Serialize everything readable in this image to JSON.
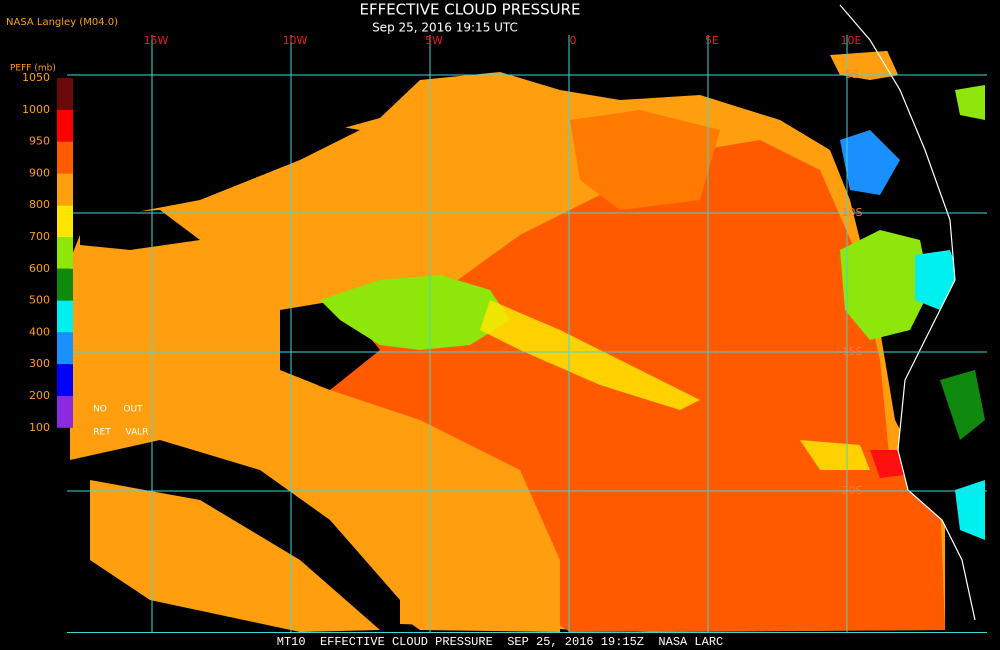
{
  "header": {
    "title": "EFFECTIVE CLOUD PRESSURE",
    "subtitle": "Sep 25, 2016 19:15 UTC",
    "credit": "NASA Langley (M04.0)"
  },
  "colorbar": {
    "label": "PEFF (mb)",
    "ticks": [
      1050,
      1000,
      950,
      900,
      800,
      700,
      600,
      500,
      400,
      300,
      200,
      100
    ],
    "colors": [
      "#6a0a0a",
      "#ff0000",
      "#ff5a00",
      "#ff9f10",
      "#ffe600",
      "#8ee60a",
      "#0f8a0f",
      "#00f0f0",
      "#1a90ff",
      "#0000ff",
      "#8a2be2"
    ]
  },
  "legend_notes": [
    "NO",
    "OUT",
    "RET",
    "VALR"
  ],
  "map": {
    "longitudes": [
      "15W",
      "10W",
      "5W",
      "0",
      "5E",
      "10E"
    ],
    "latitudes": [
      "5S",
      "10S",
      "15S",
      "20S"
    ]
  },
  "footer": "MT10  EFFECTIVE CLOUD PRESSURE  SEP 25, 2016 19:15Z  NASA LARC"
}
